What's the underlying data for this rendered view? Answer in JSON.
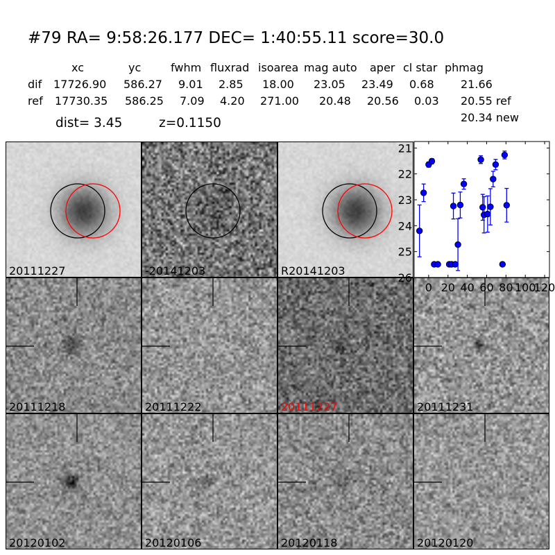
{
  "title": "#79   RA= 9:58:26.177 DEC= 1:40:55.11      score=30.0",
  "table": {
    "headers": [
      "xc",
      "yc",
      "fwhm",
      "fluxrad",
      "isoarea",
      "mag auto",
      "aper",
      "cl star",
      "phmag"
    ],
    "rows": [
      {
        "label": "dif",
        "values": [
          "17726.90",
          "586.27",
          "9.01",
          "2.85",
          "18.00",
          "23.05",
          "23.49",
          "0.68",
          "21.66"
        ]
      },
      {
        "label": "ref",
        "values": [
          "17730.35",
          "586.25",
          "7.09",
          "4.20",
          "271.00",
          "20.48",
          "20.56",
          "0.03",
          "20.55 ref"
        ]
      }
    ],
    "extra_phmag": "20.34 new"
  },
  "dist": "dist=  3.45",
  "z": "z=0.1150",
  "stamps": [
    {
      "label": "20111227",
      "circles": [
        "black",
        "red"
      ]
    },
    {
      "label": "-20141203",
      "circles": [
        "black"
      ]
    },
    {
      "label": "R20141203",
      "circles": [
        "black",
        "red"
      ]
    },
    {
      "label": "20111218",
      "crosshair": true
    },
    {
      "label": "20111222",
      "crosshair": true
    },
    {
      "label": "20111227",
      "crosshair": true,
      "label_color": "#ff0000"
    },
    {
      "label": "20111231",
      "crosshair": true
    },
    {
      "label": "20120102",
      "crosshair": true
    },
    {
      "label": "20120106",
      "crosshair": true
    },
    {
      "label": "20120118",
      "crosshair": true
    },
    {
      "label": "20120120",
      "crosshair": true
    }
  ],
  "chart_data": {
    "type": "scatter",
    "error_bars": true,
    "marker_color": "#0000ff",
    "xlim": [
      -15,
      125
    ],
    "ylim": [
      26,
      20.75
    ],
    "y_inverted": true,
    "xticks": [
      0,
      20,
      40,
      60,
      80,
      100,
      120
    ],
    "yticks": [
      21,
      22,
      23,
      24,
      25,
      26
    ],
    "points": [
      {
        "x": -9.5,
        "y": 24.2,
        "err": 1.0
      },
      {
        "x": -5.2,
        "y": 22.73,
        "err": 0.34
      },
      {
        "x": 0,
        "y": 21.64,
        "err": 0.1
      },
      {
        "x": 3.3,
        "y": 21.51,
        "err": 0.1
      },
      {
        "x": 5.7,
        "y": 25.49,
        "err": 0.05
      },
      {
        "x": 9.5,
        "y": 25.49,
        "err": 0.05
      },
      {
        "x": 21.3,
        "y": 25.49,
        "err": 0.05
      },
      {
        "x": 23.7,
        "y": 25.49,
        "err": 0.05
      },
      {
        "x": 25.6,
        "y": 23.24,
        "err": 0.5
      },
      {
        "x": 27.5,
        "y": 25.49,
        "err": 0.05
      },
      {
        "x": 30.3,
        "y": 24.73,
        "err": 1.0
      },
      {
        "x": 32.7,
        "y": 23.2,
        "err": 0.5
      },
      {
        "x": 36.4,
        "y": 22.39,
        "err": 0.2
      },
      {
        "x": 54,
        "y": 21.45,
        "err": 0.15
      },
      {
        "x": 55.9,
        "y": 23.29,
        "err": 0.5
      },
      {
        "x": 57.3,
        "y": 23.58,
        "err": 0.7
      },
      {
        "x": 61,
        "y": 23.55,
        "err": 0.7
      },
      {
        "x": 63.9,
        "y": 23.27,
        "err": 0.7
      },
      {
        "x": 66.7,
        "y": 22.2,
        "err": 0.3
      },
      {
        "x": 69.3,
        "y": 21.64,
        "err": 0.2
      },
      {
        "x": 76.4,
        "y": 25.49,
        "err": 0.05
      },
      {
        "x": 78.6,
        "y": 21.27,
        "err": 0.15
      },
      {
        "x": 80.7,
        "y": 23.21,
        "err": 0.65
      }
    ]
  }
}
